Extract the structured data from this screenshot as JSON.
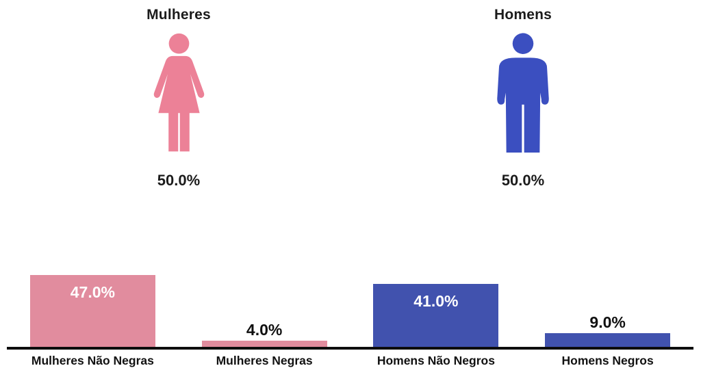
{
  "pictograms": {
    "left": {
      "title": "Mulheres",
      "value_label": "50.0%"
    },
    "right": {
      "title": "Homens",
      "value_label": "50.0%"
    }
  },
  "chart_data": [
    {
      "type": "pictogram",
      "categories": [
        "Mulheres",
        "Homens"
      ],
      "values": [
        50.0,
        50.0
      ],
      "value_labels": [
        "50.0%",
        "50.0%"
      ],
      "colors": [
        "#ec8197",
        "#3b4fc0"
      ],
      "icons": [
        "female-icon",
        "male-icon"
      ]
    },
    {
      "type": "bar",
      "categories": [
        "Mulheres Não Negras",
        "Mulheres Negras",
        "Homens Não Negros",
        "Homens Negros"
      ],
      "values": [
        47.0,
        4.0,
        41.0,
        9.0
      ],
      "value_labels": [
        "47.0%",
        "4.0%",
        "41.0%",
        "9.0%"
      ],
      "colors": [
        "#e18c9e",
        "#e18c9e",
        "#4152ae",
        "#4152ae"
      ],
      "label_inside": [
        true,
        false,
        true,
        false
      ],
      "ylim": [
        0,
        50
      ],
      "grid": false,
      "legend": false,
      "axis_color": "#0d0d0d",
      "inside_label_color": "#ffffff",
      "outside_label_color": "#101010"
    }
  ],
  "colors": {
    "background": "#ffffff",
    "text": "#1b1b1b",
    "female_icon": "#ec8197",
    "male_icon": "#3b4fc0",
    "bar_pink": "#e18c9e",
    "bar_blue": "#4152ae",
    "axis": "#0d0d0d"
  }
}
